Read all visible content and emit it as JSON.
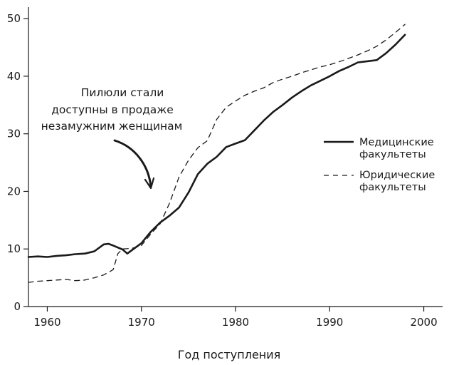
{
  "chart_data": {
    "type": "line",
    "title": "",
    "xlabel": "Год поступления",
    "ylabel": "",
    "xlim": [
      1958,
      2002
    ],
    "ylim": [
      0,
      52
    ],
    "x_ticks": [
      1960,
      1970,
      1980,
      1990,
      2000
    ],
    "y_ticks": [
      0,
      10,
      20,
      30,
      40,
      50
    ],
    "grid": false,
    "legend_position": "right",
    "series": [
      {
        "name": "Медицинские факультеты",
        "legend_lines": [
          "Медицинские",
          "факультеты"
        ],
        "style": "solid",
        "x": [
          1958,
          1959,
          1960,
          1961,
          1962,
          1963,
          1964,
          1965,
          1966,
          1966.5,
          1967,
          1968,
          1968.5,
          1969,
          1970,
          1971,
          1972,
          1973,
          1974,
          1975,
          1976,
          1977,
          1978,
          1979,
          1980,
          1981,
          1982,
          1983,
          1984,
          1985,
          1986,
          1987,
          1988,
          1989,
          1990,
          1991,
          1992,
          1993,
          1994,
          1995,
          1996,
          1997,
          1998
        ],
        "y": [
          8.6,
          8.7,
          8.6,
          8.8,
          8.9,
          9.1,
          9.2,
          9.6,
          10.8,
          10.9,
          10.6,
          9.9,
          9.2,
          9.8,
          11.0,
          13.0,
          14.6,
          15.8,
          17.2,
          19.8,
          23.0,
          24.8,
          26.0,
          27.7,
          28.3,
          28.9,
          30.6,
          32.3,
          33.8,
          35.0,
          36.3,
          37.4,
          38.4,
          39.2,
          40.0,
          40.9,
          41.6,
          42.4,
          42.6,
          42.8,
          44.0,
          45.5,
          47.2
        ]
      },
      {
        "name": "Юридические факультеты",
        "legend_lines": [
          "Юридические",
          "факультеты"
        ],
        "style": "dashed",
        "x": [
          1958,
          1959,
          1960,
          1961,
          1962,
          1963,
          1964,
          1965,
          1966,
          1967,
          1967.5,
          1968,
          1969,
          1970,
          1971,
          1972,
          1973,
          1974,
          1975,
          1976,
          1977,
          1978,
          1979,
          1980,
          1981,
          1982,
          1983,
          1984,
          1985,
          1986,
          1987,
          1988,
          1989,
          1990,
          1991,
          1992,
          1993,
          1994,
          1995,
          1996,
          1997,
          1998
        ],
        "y": [
          4.2,
          4.4,
          4.5,
          4.6,
          4.7,
          4.5,
          4.6,
          5.0,
          5.5,
          6.4,
          9.2,
          10.0,
          10.1,
          10.6,
          12.6,
          14.4,
          18.0,
          22.5,
          25.4,
          27.6,
          28.8,
          32.5,
          34.6,
          35.7,
          36.7,
          37.4,
          38.0,
          38.9,
          39.5,
          40.0,
          40.6,
          41.1,
          41.6,
          42.0,
          42.5,
          43.1,
          43.7,
          44.4,
          45.2,
          46.3,
          47.6,
          49.0
        ]
      }
    ],
    "annotation": {
      "lines": [
        "Пилюли стали",
        "доступны в продаже",
        "незамужним женщинам"
      ],
      "points_to_year": 1972
    }
  },
  "colors": {
    "ink": "#1a1a1a",
    "background": "#ffffff"
  }
}
